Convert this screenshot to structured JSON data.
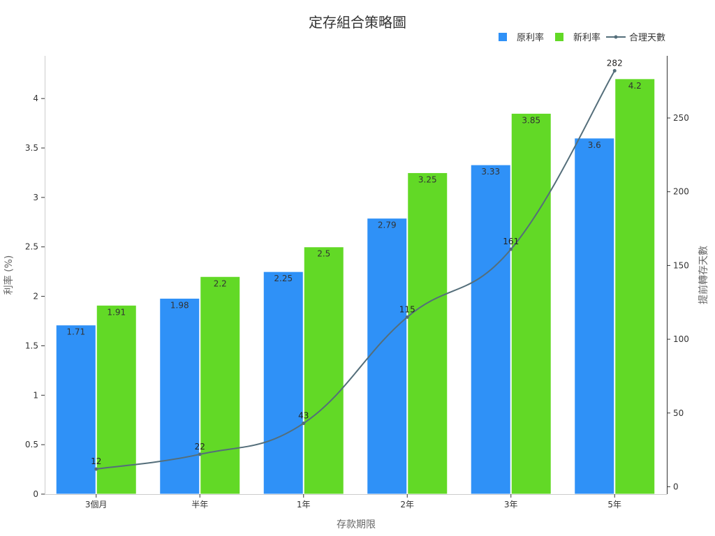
{
  "chart_data": {
    "type": "bar",
    "title": "定存組合策略圖",
    "xlabel": "存款期限",
    "ylabel": "利率 (%)",
    "y2label": "提前轉存天數",
    "categories": [
      "3個月",
      "半年",
      "1年",
      "2年",
      "3年",
      "5年"
    ],
    "ylim": [
      0,
      4.4
    ],
    "y_ticks": [
      0,
      0.5,
      1,
      1.5,
      2,
      2.5,
      3,
      3.5,
      4
    ],
    "y2lim": [
      -5,
      290
    ],
    "y2_ticks": [
      0,
      50,
      100,
      150,
      200,
      250
    ],
    "series": [
      {
        "name": "原利率",
        "type": "bar",
        "axis": "left",
        "color": "#2f91f7",
        "values": [
          1.71,
          1.98,
          2.25,
          2.79,
          3.33,
          3.6
        ]
      },
      {
        "name": "新利率",
        "type": "bar",
        "axis": "left",
        "color": "#62d926",
        "values": [
          1.91,
          2.2,
          2.5,
          3.25,
          3.85,
          4.2
        ]
      },
      {
        "name": "合理天數",
        "type": "line",
        "axis": "right",
        "color": "#546e7a",
        "values": [
          12,
          22,
          43,
          115,
          161,
          282
        ]
      }
    ],
    "legend_position": "top-right",
    "grid": false
  }
}
